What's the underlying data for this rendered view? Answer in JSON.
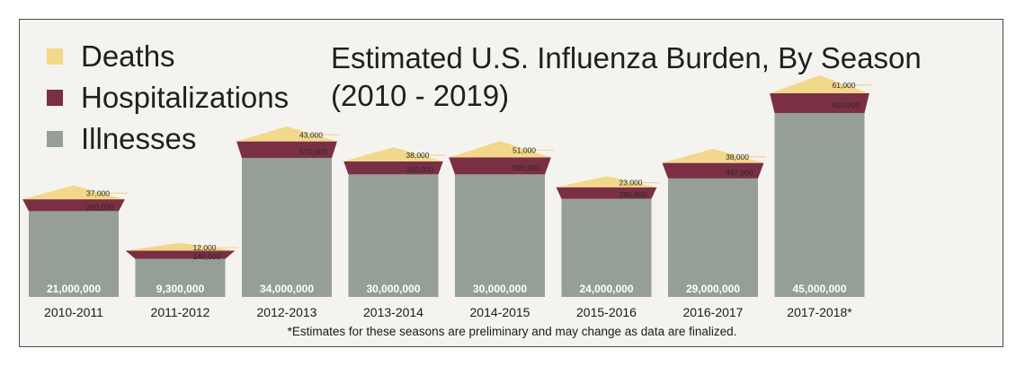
{
  "title_line1": "Estimated U.S. Influenza Burden, By Season",
  "title_line2": "(2010 - 2019)",
  "legend": [
    {
      "label": "Deaths",
      "color": "#f2d88a"
    },
    {
      "label": "Hospitalizations",
      "color": "#7a2f45"
    },
    {
      "label": "Illnesses",
      "color": "#969f97"
    }
  ],
  "footnote": "*Estimates for these seasons are preliminary and may change as data are finalized.",
  "chart_data": {
    "type": "area",
    "categories": [
      "2010-2011",
      "2011-2012",
      "2012-2013",
      "2013-2014",
      "2014-2015",
      "2015-2016",
      "2016-2017",
      "2017-2018*"
    ],
    "series": [
      {
        "name": "Illnesses",
        "values": [
          21000000,
          9300000,
          34000000,
          30000000,
          30000000,
          24000000,
          29000000,
          45000000
        ],
        "labels": [
          "21,000,000",
          "9,300,000",
          "34,000,000",
          "30,000,000",
          "30,000,000",
          "24,000,000",
          "29,000,000",
          "45,000,000"
        ]
      },
      {
        "name": "Hospitalizations",
        "values": [
          290000,
          140000,
          570000,
          350000,
          590000,
          280000,
          497000,
          810000
        ],
        "labels": [
          "290,000",
          "140,000",
          "570,000",
          "350,000",
          "590,000",
          "280,000",
          "497,000",
          "810,000"
        ]
      },
      {
        "name": "Deaths",
        "values": [
          37000,
          12000,
          43000,
          38000,
          51000,
          23000,
          38000,
          61000
        ],
        "labels": [
          "37,000",
          "12,000",
          "43,000",
          "38,000",
          "51,000",
          "23,000",
          "38,000",
          "61,000"
        ]
      }
    ],
    "colors": {
      "illness": "#969f97",
      "hosp": "#7a2f45",
      "death": "#f2d88a"
    }
  }
}
